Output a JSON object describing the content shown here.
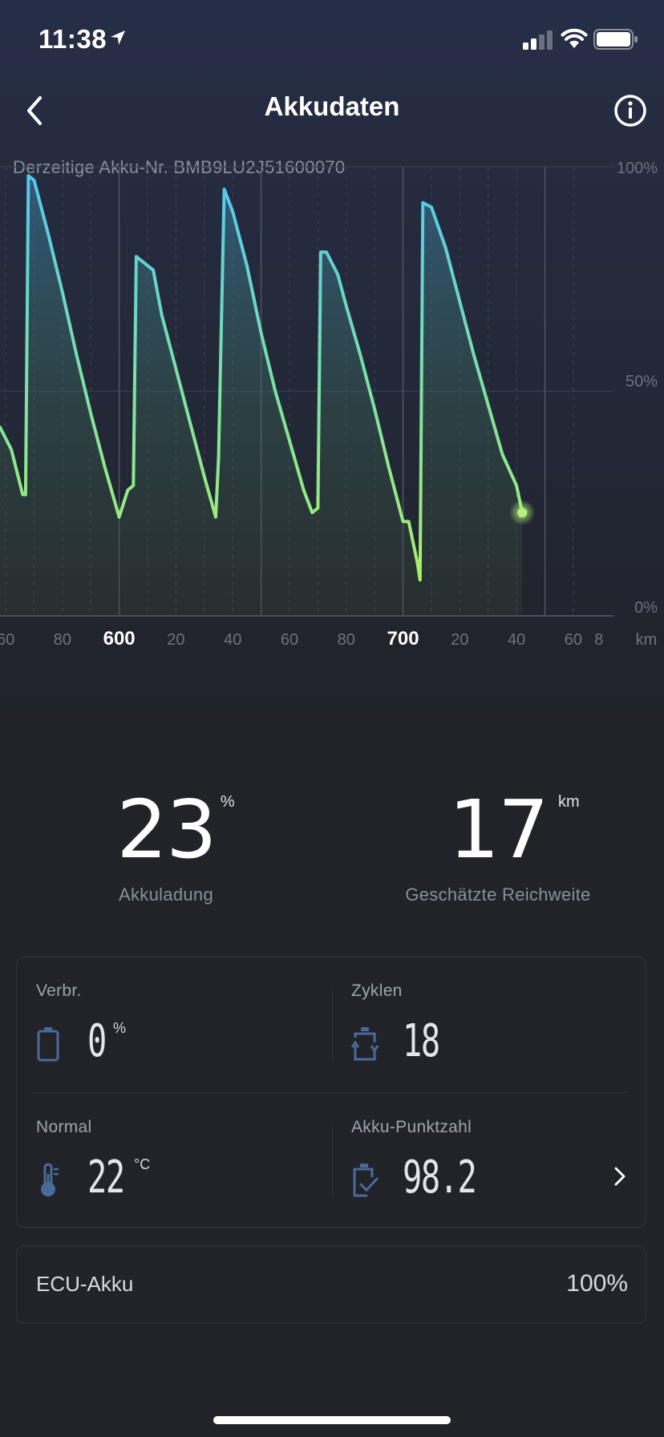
{
  "status_bar": {
    "time": "11:38"
  },
  "nav": {
    "title": "Akkudaten"
  },
  "battery_number": "Derzeitige Akku-Nr. BMB9LU2J51600070",
  "chart_data": {
    "type": "area",
    "xunit": "km",
    "y_ticks": [
      "100%",
      "50%",
      "0%"
    ],
    "x_ticks": [
      {
        "label": "60",
        "x": 560,
        "major": false
      },
      {
        "label": "80",
        "x": 580,
        "major": false
      },
      {
        "label": "600",
        "x": 600,
        "major": true
      },
      {
        "label": "20",
        "x": 620,
        "major": false
      },
      {
        "label": "40",
        "x": 640,
        "major": false
      },
      {
        "label": "60",
        "x": 660,
        "major": false
      },
      {
        "label": "80",
        "x": 680,
        "major": false
      },
      {
        "label": "700",
        "x": 700,
        "major": true
      },
      {
        "label": "20",
        "x": 720,
        "major": false
      },
      {
        "label": "40",
        "x": 740,
        "major": false
      },
      {
        "label": "60",
        "x": 760,
        "major": false
      },
      {
        "label": "8",
        "x": 769,
        "major": false
      }
    ],
    "ylim": [
      0,
      100
    ],
    "xlim": [
      558,
      775
    ],
    "series": [
      {
        "points": [
          [
            558,
            42
          ],
          [
            562,
            37
          ],
          [
            566,
            27
          ],
          [
            567,
            27
          ],
          [
            568,
            98
          ],
          [
            570,
            97
          ],
          [
            575,
            85
          ],
          [
            580,
            72
          ],
          [
            585,
            58
          ],
          [
            590,
            45
          ],
          [
            595,
            33
          ],
          [
            600,
            22
          ],
          [
            603,
            28
          ],
          [
            605,
            29
          ],
          [
            606,
            80
          ],
          [
            608,
            79
          ],
          [
            612,
            77
          ],
          [
            615,
            67
          ],
          [
            620,
            55
          ],
          [
            625,
            43
          ],
          [
            630,
            31
          ],
          [
            634,
            22
          ],
          [
            635,
            35
          ],
          [
            637,
            95
          ],
          [
            640,
            90
          ],
          [
            645,
            78
          ],
          [
            650,
            63
          ],
          [
            655,
            50
          ],
          [
            660,
            39
          ],
          [
            665,
            28
          ],
          [
            668,
            23
          ],
          [
            670,
            24
          ],
          [
            671,
            81
          ],
          [
            673,
            81
          ],
          [
            677,
            76
          ],
          [
            680,
            69
          ],
          [
            685,
            58
          ],
          [
            690,
            46
          ],
          [
            695,
            33
          ],
          [
            700,
            21
          ],
          [
            702,
            21
          ],
          [
            705,
            12
          ],
          [
            706,
            8
          ],
          [
            707,
            92
          ],
          [
            710,
            91
          ],
          [
            715,
            82
          ],
          [
            720,
            70
          ],
          [
            725,
            58
          ],
          [
            730,
            47
          ],
          [
            735,
            36
          ],
          [
            740,
            29
          ],
          [
            742,
            23
          ]
        ]
      }
    ]
  },
  "stats": {
    "charge": {
      "value": "23",
      "unit": "%",
      "label": "Akkuladung"
    },
    "range": {
      "value": "17",
      "unit": "km",
      "label": "Geschätzte Reichweite"
    }
  },
  "details": {
    "consumption": {
      "label": "Verbr.",
      "value": "0",
      "unit": "%"
    },
    "cycles": {
      "label": "Zyklen",
      "value": "18"
    },
    "temperature": {
      "label": "Normal",
      "value": "22",
      "unit": "°C"
    },
    "score": {
      "label": "Akku-Punktzahl",
      "value": "98.2"
    }
  },
  "ecu": {
    "label": "ECU-Akku",
    "value": "100%"
  }
}
